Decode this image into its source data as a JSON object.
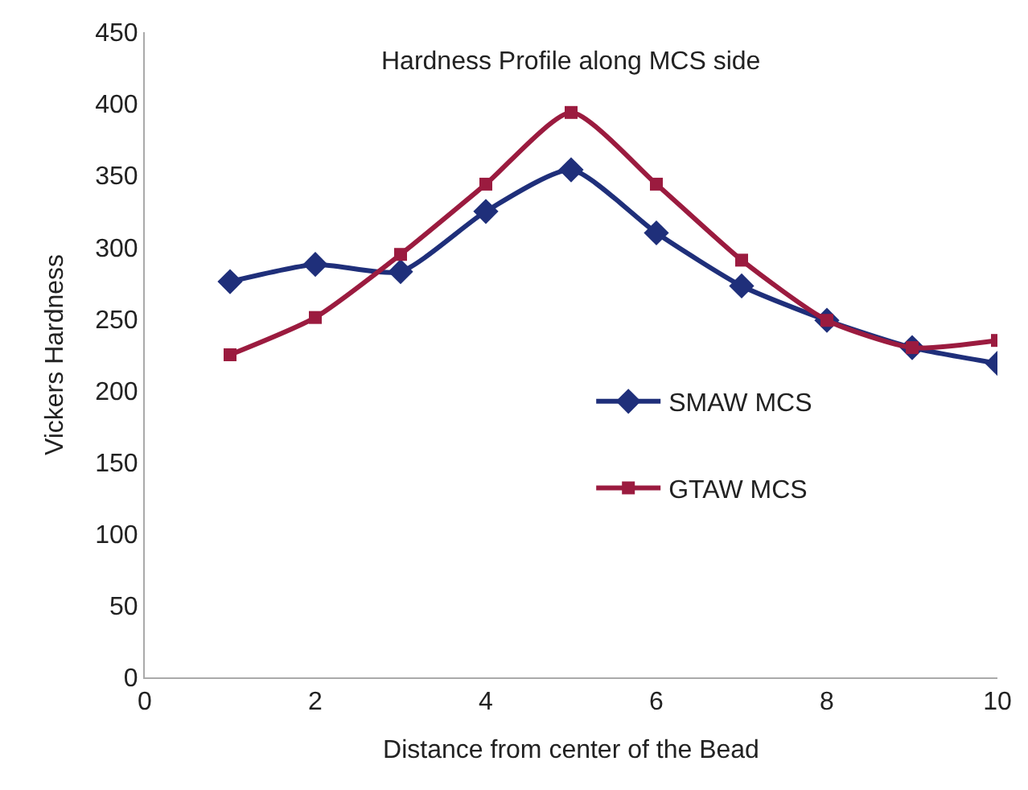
{
  "chart_data": {
    "type": "line",
    "title": "Hardness Profile along MCS side",
    "xlabel": "Distance from center of the Bead",
    "ylabel": "Vickers Hardness",
    "x": [
      1,
      2,
      3,
      4,
      5,
      6,
      7,
      8,
      9,
      10
    ],
    "series": [
      {
        "name": "SMAW MCS",
        "color": "#1f2f7a",
        "marker": "diamond",
        "values": [
          276,
          288,
          283,
          325,
          354,
          310,
          273,
          249,
          230,
          219
        ]
      },
      {
        "name": "GTAW MCS",
        "color": "#9b1b3f",
        "marker": "square",
        "values": [
          225,
          251,
          295,
          344,
          394,
          344,
          291,
          249,
          230,
          235
        ]
      }
    ],
    "xlim": [
      0,
      10
    ],
    "xticks": [
      0,
      2,
      4,
      6,
      8,
      10
    ],
    "ylim": [
      0,
      450
    ],
    "yticks": [
      0,
      50,
      100,
      150,
      200,
      250,
      300,
      350,
      400,
      450
    ],
    "legend": "right",
    "line_style": "solid"
  }
}
